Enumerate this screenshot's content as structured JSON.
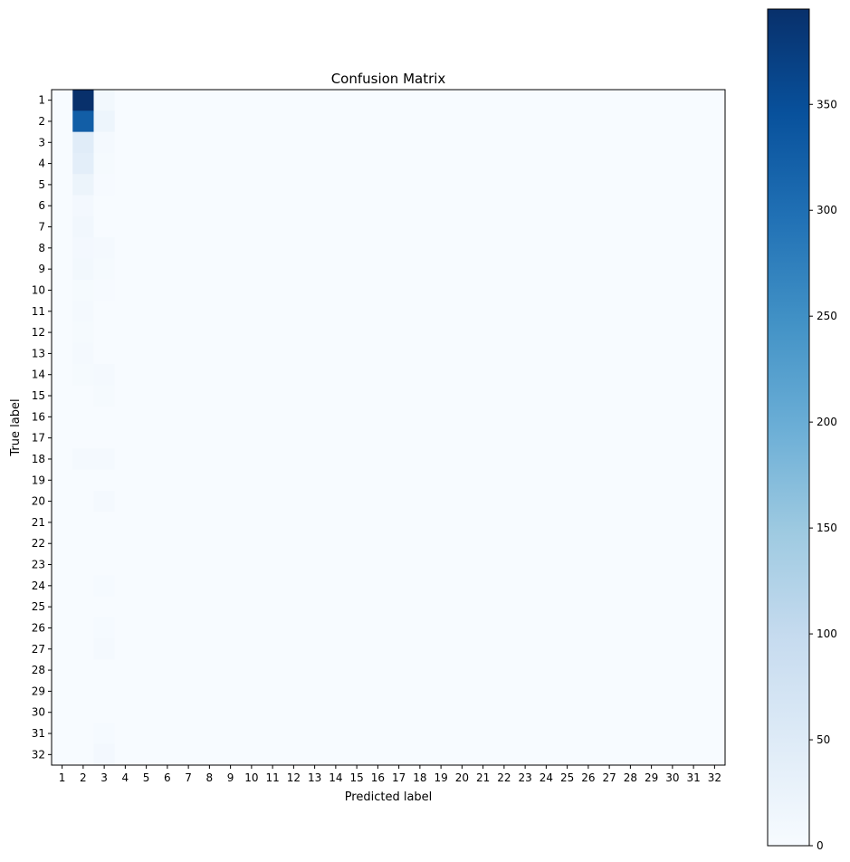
{
  "chart_data": {
    "type": "heatmap",
    "title": "Confusion Matrix",
    "xlabel": "Predicted label",
    "ylabel": "True label",
    "x_categories": [
      "1",
      "2",
      "3",
      "4",
      "5",
      "6",
      "7",
      "8",
      "9",
      "10",
      "11",
      "12",
      "13",
      "14",
      "15",
      "16",
      "17",
      "18",
      "19",
      "20",
      "21",
      "22",
      "23",
      "24",
      "25",
      "26",
      "27",
      "28",
      "29",
      "30",
      "31",
      "32"
    ],
    "y_categories": [
      "1",
      "2",
      "3",
      "4",
      "5",
      "6",
      "7",
      "8",
      "9",
      "10",
      "11",
      "12",
      "13",
      "14",
      "15",
      "16",
      "17",
      "18",
      "19",
      "20",
      "21",
      "22",
      "23",
      "24",
      "25",
      "26",
      "27",
      "28",
      "29",
      "30",
      "31",
      "32"
    ],
    "nonzero_cells": [
      {
        "true": "1",
        "pred": "2",
        "value": 395
      },
      {
        "true": "1",
        "pred": "3",
        "value": 10
      },
      {
        "true": "2",
        "pred": "2",
        "value": 325
      },
      {
        "true": "2",
        "pred": "3",
        "value": 20
      },
      {
        "true": "3",
        "pred": "2",
        "value": 45
      },
      {
        "true": "3",
        "pred": "3",
        "value": 5
      },
      {
        "true": "4",
        "pred": "2",
        "value": 40
      },
      {
        "true": "4",
        "pred": "3",
        "value": 4
      },
      {
        "true": "5",
        "pred": "2",
        "value": 22
      },
      {
        "true": "5",
        "pred": "3",
        "value": 2
      },
      {
        "true": "6",
        "pred": "2",
        "value": 8
      },
      {
        "true": "7",
        "pred": "2",
        "value": 12
      },
      {
        "true": "8",
        "pred": "2",
        "value": 8
      },
      {
        "true": "8",
        "pred": "3",
        "value": 5
      },
      {
        "true": "9",
        "pred": "2",
        "value": 10
      },
      {
        "true": "9",
        "pred": "3",
        "value": 4
      },
      {
        "true": "10",
        "pred": "2",
        "value": 4
      },
      {
        "true": "10",
        "pred": "3",
        "value": 2
      },
      {
        "true": "11",
        "pred": "2",
        "value": 5
      },
      {
        "true": "12",
        "pred": "2",
        "value": 4
      },
      {
        "true": "13",
        "pred": "2",
        "value": 5
      },
      {
        "true": "14",
        "pred": "2",
        "value": 4
      },
      {
        "true": "14",
        "pred": "3",
        "value": 6
      },
      {
        "true": "15",
        "pred": "3",
        "value": 4
      },
      {
        "true": "18",
        "pred": "2",
        "value": 6
      },
      {
        "true": "18",
        "pred": "3",
        "value": 6
      },
      {
        "true": "20",
        "pred": "3",
        "value": 5
      },
      {
        "true": "24",
        "pred": "3",
        "value": 3
      },
      {
        "true": "26",
        "pred": "3",
        "value": 3
      },
      {
        "true": "27",
        "pred": "3",
        "value": 6
      },
      {
        "true": "31",
        "pred": "3",
        "value": 3
      },
      {
        "true": "32",
        "pred": "3",
        "value": 8
      }
    ],
    "colormap": "Blues",
    "colormap_stops": [
      "#f7fbff",
      "#deebf7",
      "#c6dbef",
      "#9ecae1",
      "#6baed6",
      "#4292c6",
      "#2171b5",
      "#08519c",
      "#08306b"
    ],
    "color_range": [
      0,
      395
    ],
    "colorbar_ticks": [
      0,
      50,
      100,
      150,
      200,
      250,
      300,
      350
    ]
  }
}
